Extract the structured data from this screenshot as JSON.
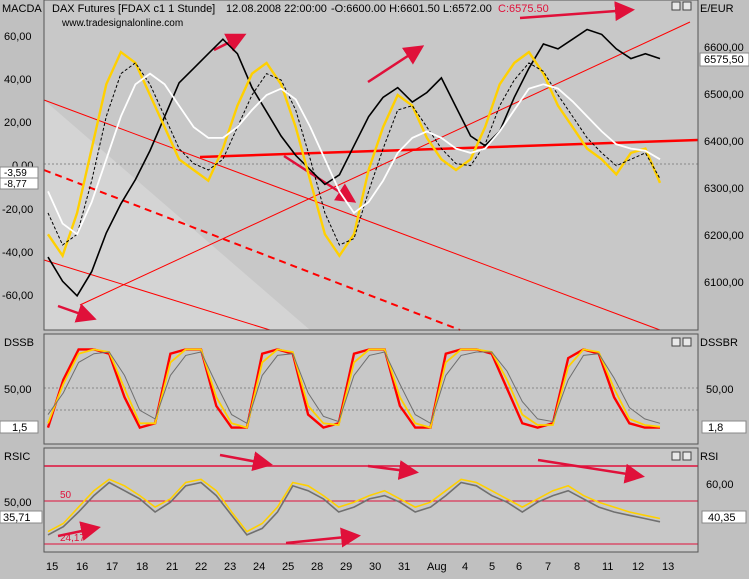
{
  "header": {
    "instrument": "DAX Futures [FDAX c1  1 Stunde]",
    "timestamp": "12.08.2008 22:00:00",
    "ohlc": "-O:6600.00 H:6601.50 L:6572.00",
    "close": "C:6575.50",
    "website": "www.tradesignalonline.com"
  },
  "panels": {
    "main": {
      "left_label": "MACDA",
      "right_label": "E/EUR",
      "left_ticks": [
        "60,00",
        "40,00",
        "20,00",
        "0,00",
        "-20,00",
        "-40,00",
        "-60,00"
      ],
      "right_ticks": [
        "6600,00",
        "6500,00",
        "6400,00",
        "6300,00",
        "6200,00",
        "6100,00"
      ],
      "left_badges": [
        "-3,59",
        "-8,77"
      ],
      "right_badge": "6575,50"
    },
    "dss": {
      "left_label": "DSSB",
      "right_label": "DSSBR",
      "left_tick": "50,00",
      "right_tick": "50,00",
      "left_badge": "1,5",
      "right_badge": "1,8"
    },
    "rsi": {
      "left_label": "RSIC",
      "right_label": "RSI",
      "left_tick": "50,00",
      "right_tick": "60,00",
      "left_badge": "35,71",
      "right_badge": "40,35",
      "annotation_50": "50",
      "annotation_low": "24,17"
    }
  },
  "x_axis": {
    "labels": [
      "15",
      "16",
      "17",
      "18",
      "21",
      "22",
      "23",
      "24",
      "25",
      "28",
      "29",
      "30",
      "31",
      "Aug",
      "4",
      "5",
      "6",
      "7",
      "8",
      "11",
      "12",
      "13"
    ]
  },
  "chart_data": [
    {
      "type": "line",
      "title": "DAX Futures [FDAX c1  1 Stunde]",
      "ylabel": "E/EUR",
      "ylim": [
        6040,
        6670
      ],
      "series": [
        {
          "values": [
            6170,
            6120,
            6090,
            6140,
            6220,
            6280,
            6330,
            6390,
            6460,
            6530,
            6560,
            6590,
            6620,
            6590,
            6520,
            6470,
            6420,
            6380,
            6350,
            6320,
            6340,
            6400,
            6460,
            6500,
            6520,
            6490,
            6510,
            6540,
            6480,
            6420,
            6400,
            6430,
            6500,
            6560,
            6610,
            6600,
            6620,
            6640,
            6630,
            6600,
            6580,
            6590,
            6580
          ]
        }
      ]
    },
    {
      "type": "line",
      "ylabel": "MACDA",
      "ylim": [
        -70,
        70
      ],
      "series": [
        {
          "values": [
            -30,
            -40,
            -20,
            10,
            40,
            55,
            50,
            35,
            20,
            5,
            0,
            -5,
            10,
            30,
            45,
            50,
            40,
            20,
            -5,
            -30,
            -40,
            -30,
            0,
            20,
            35,
            30,
            15,
            5,
            0,
            5,
            20,
            40,
            50,
            55,
            45,
            30,
            20,
            10,
            5,
            -2,
            8,
            10,
            -6
          ]
        },
        {
          "values": [
            -20,
            -35,
            -30,
            -5,
            25,
            45,
            50,
            40,
            25,
            10,
            3,
            0,
            5,
            20,
            35,
            45,
            42,
            28,
            5,
            -20,
            -35,
            -32,
            -10,
            10,
            28,
            30,
            20,
            10,
            3,
            2,
            12,
            30,
            42,
            50,
            46,
            35,
            25,
            15,
            8,
            2,
            5,
            8,
            -4
          ]
        },
        {
          "values": [
            -10,
            -25,
            -30,
            -15,
            5,
            25,
            40,
            45,
            40,
            30,
            20,
            15,
            15,
            20,
            28,
            35,
            38,
            33,
            20,
            5,
            -10,
            -20,
            -15,
            -5,
            8,
            15,
            18,
            15,
            10,
            8,
            10,
            18,
            28,
            38,
            40,
            38,
            32,
            25,
            18,
            12,
            10,
            9,
            5
          ]
        }
      ]
    },
    {
      "type": "line",
      "ylabel": "DSSB",
      "ylim": [
        0,
        100
      ],
      "series": [
        {
          "values": [
            5,
            60,
            95,
            95,
            90,
            40,
            5,
            10,
            90,
            95,
            95,
            30,
            5,
            5,
            90,
            95,
            90,
            20,
            5,
            10,
            90,
            95,
            95,
            30,
            5,
            5,
            90,
            95,
            95,
            90,
            50,
            10,
            5,
            10,
            85,
            95,
            90,
            40,
            10,
            5,
            5
          ]
        },
        {
          "values": [
            10,
            55,
            90,
            95,
            92,
            50,
            10,
            10,
            80,
            95,
            95,
            40,
            10,
            5,
            80,
            95,
            92,
            30,
            10,
            8,
            80,
            95,
            95,
            40,
            10,
            5,
            80,
            95,
            95,
            92,
            60,
            20,
            8,
            8,
            75,
            95,
            92,
            50,
            15,
            8,
            6
          ]
        },
        {
          "values": [
            20,
            45,
            80,
            90,
            92,
            65,
            25,
            15,
            65,
            88,
            92,
            55,
            20,
            10,
            65,
            88,
            90,
            45,
            18,
            12,
            65,
            88,
            92,
            55,
            20,
            10,
            65,
            88,
            92,
            92,
            70,
            35,
            15,
            12,
            60,
            88,
            90,
            62,
            28,
            15,
            10
          ]
        }
      ]
    },
    {
      "type": "line",
      "ylabel": "RSIC",
      "ylim": [
        20,
        75
      ],
      "series": [
        {
          "values": [
            30,
            35,
            45,
            55,
            62,
            58,
            52,
            45,
            50,
            60,
            62,
            55,
            42,
            30,
            35,
            45,
            60,
            58,
            52,
            45,
            48,
            52,
            55,
            50,
            45,
            48,
            55,
            62,
            60,
            55,
            50,
            45,
            50,
            55,
            58,
            52,
            48,
            45,
            42,
            40,
            38
          ]
        },
        {
          "values": [
            28,
            33,
            42,
            52,
            60,
            55,
            50,
            42,
            48,
            58,
            60,
            52,
            40,
            28,
            32,
            42,
            58,
            55,
            50,
            42,
            45,
            50,
            52,
            48,
            42,
            45,
            52,
            60,
            58,
            52,
            48,
            42,
            48,
            52,
            55,
            50,
            45,
            42,
            40,
            38,
            36
          ]
        }
      ]
    }
  ],
  "colors": {
    "price": "#000000",
    "white_line": "#ffffff",
    "yellow": "#ffd000",
    "red": "#ff0000",
    "annot_red": "#e0103a",
    "grey_line": "#707070"
  }
}
